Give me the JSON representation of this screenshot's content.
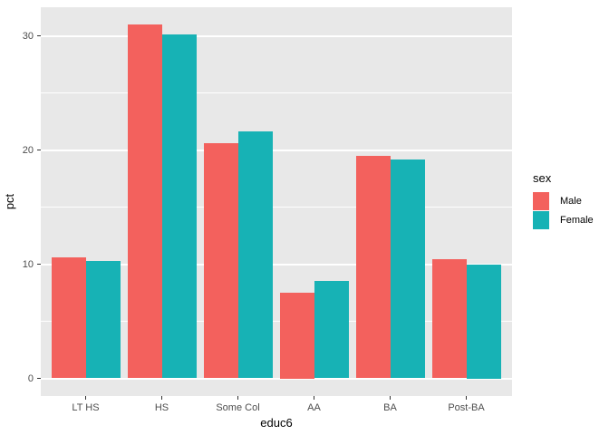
{
  "chart_data": {
    "type": "bar",
    "title": "",
    "xlabel": "educ6",
    "ylabel": "pct",
    "legend_title": "sex",
    "legend_position": "right",
    "categories": [
      "LT HS",
      "HS",
      "Some Col",
      "AA",
      "BA",
      "Post-BA"
    ],
    "series": [
      {
        "name": "Male",
        "color": "#F3615D",
        "values": [
          10.6,
          31.0,
          20.6,
          7.5,
          19.5,
          10.4
        ]
      },
      {
        "name": "Female",
        "color": "#17B2B5",
        "values": [
          10.3,
          30.1,
          21.6,
          8.5,
          19.2,
          10.0
        ]
      }
    ],
    "y_ticks": [
      0,
      10,
      20,
      30
    ],
    "y_minor_ticks": [
      5,
      15,
      25
    ],
    "ylim": [
      -1.55,
      32.5
    ],
    "grid": true,
    "panel_background": "#E8E8E8",
    "grid_color": "#FFFFFF",
    "tick_label_color": "#4D4D4D",
    "tick_mark_color": "#333333"
  }
}
